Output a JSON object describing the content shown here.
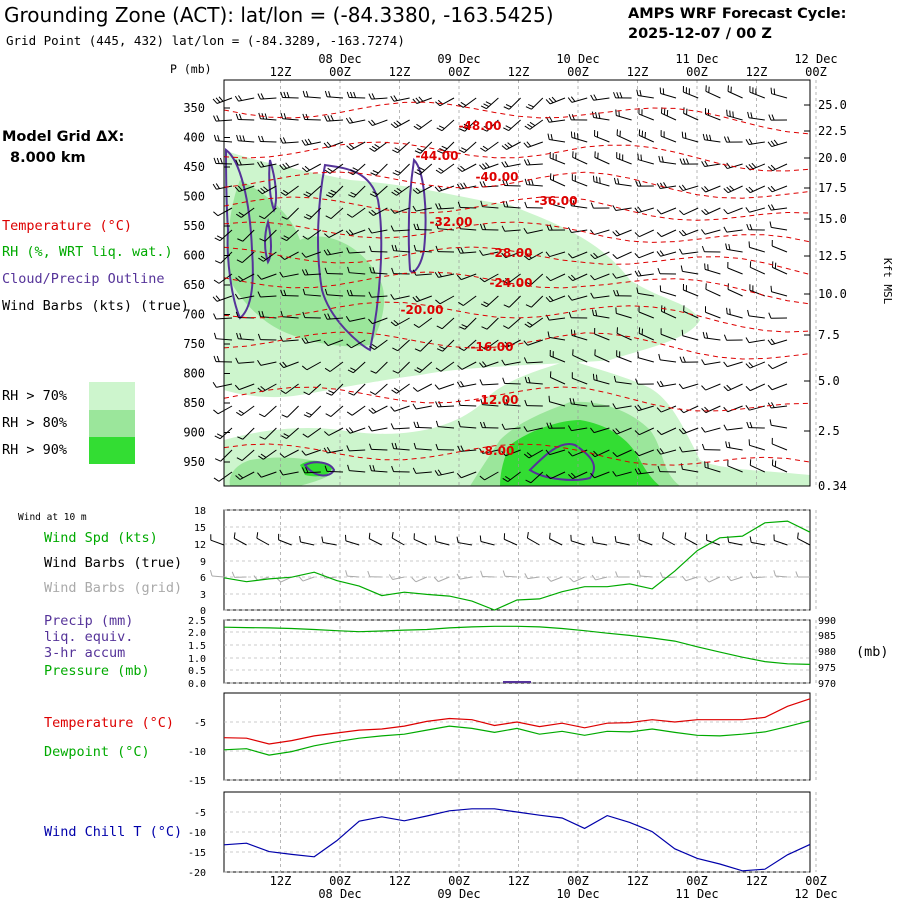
{
  "header": {
    "title": "Grounding Zone (ACT):  lat/lon = (-84.3380, -163.5425)",
    "grid_point": "Grid Point (445, 432) lat/lon = (-84.3289, -163.7274)",
    "cycle_line1": "AMPS WRF Forecast Cycle:",
    "cycle_line2": "2025-12-07 / 00  Z"
  },
  "model_grid": {
    "line1": "Model Grid ΔX:",
    "line2": "8.000 km"
  },
  "time_axis": {
    "hour_labels": [
      "12Z",
      "00Z",
      "12Z",
      "00Z",
      "12Z",
      "00Z",
      "12Z",
      "00Z",
      "12Z",
      "00Z"
    ],
    "date_labels": [
      "08 Dec",
      "09 Dec",
      "10 Dec",
      "11 Dec",
      "12 Dec"
    ]
  },
  "colors": {
    "temperature": "#dd0000",
    "rh": "#00aa00",
    "cloud": "#553399",
    "wind": "#000000",
    "grid_barbs": "#aaaaaa",
    "windchill": "#0000aa",
    "rh70": "#cdf5cd",
    "rh80": "#9be69b",
    "rh90": "#33dd33"
  },
  "legend": {
    "temperature": "Temperature (°C)",
    "rh": "RH (%, WRT liq. wat.)",
    "cloud": "Cloud/Precip Outline",
    "wind": "Wind Barbs (kts) (true)",
    "rh70": "RH > 70%",
    "rh80": "RH > 80%",
    "rh90": "RH > 90%"
  },
  "chart_data": [
    {
      "type": "heatmap",
      "name": "cross-section",
      "ylabel": "P (mb)",
      "y_ticks": [
        "350",
        "400",
        "450",
        "500",
        "550",
        "600",
        "650",
        "700",
        "750",
        "800",
        "850",
        "900",
        "950"
      ],
      "right_ticks": [
        "25.0",
        "22.5",
        "20.0",
        "17.5",
        "15.0",
        "12.5",
        "10.0",
        "7.5",
        "5.0",
        "2.5",
        "0.34"
      ],
      "right_axis_label": "Kft MSL",
      "isotherm_labels": [
        "-48.00",
        "-44.00",
        "-40.00",
        "-36.00",
        "-32.00",
        "-28.00",
        "-24.00",
        "-20.00",
        "-16.00",
        "-12.00",
        "-8.00"
      ]
    },
    {
      "type": "line",
      "name": "wind-10m",
      "title": "Wind at 10 m",
      "legend": [
        "Wind Spd (kts)",
        "Wind Barbs (true)",
        "Wind Barbs (grid)"
      ],
      "y_ticks": [
        "18",
        "15",
        "12",
        "9",
        "6",
        "3",
        "0"
      ],
      "ylim": [
        0,
        18
      ],
      "series": [
        {
          "name": "Wind Spd (kts)",
          "values": [
            5.8,
            5.1,
            5.6,
            5.9,
            6.8,
            5.3,
            4.3,
            2.6,
            3.2,
            2.8,
            2.5,
            1.6,
            0,
            1.8,
            2.0,
            3.3,
            4.2,
            4.2,
            4.7,
            3.8,
            7.0,
            10.7,
            13.0,
            13.3,
            15.7,
            16.0,
            14.0
          ]
        }
      ]
    },
    {
      "type": "line",
      "name": "precip-pressure",
      "legend": [
        "Precip (mm)",
        "liq. equiv.",
        "3-hr accum",
        "Pressure (mb)"
      ],
      "y_ticks": [
        "2.5",
        "2.0",
        "1.5",
        "1.0",
        "0.5",
        "0.0"
      ],
      "right_ticks": [
        "990",
        "985",
        "980",
        "975",
        "970"
      ],
      "right_unit": "(mb)",
      "ylim": [
        0,
        2.5
      ],
      "ylim_right": [
        970,
        990
      ],
      "precip_bars": [
        {
          "index": 13,
          "value": 0.05
        }
      ],
      "series": [
        {
          "name": "Pressure (mb)",
          "values": [
            987.7,
            987.6,
            987.5,
            987.3,
            987.0,
            986.6,
            986.3,
            986.5,
            986.8,
            987.0,
            987.5,
            987.8,
            988.0,
            988.0,
            987.8,
            987.3,
            986.6,
            985.8,
            985.1,
            984.3,
            983.3,
            981.5,
            979.8,
            978.2,
            976.8,
            976.1,
            975.9
          ]
        }
      ]
    },
    {
      "type": "line",
      "name": "temperature-dewpoint",
      "legend": [
        "Temperature (°C)",
        "Dewpoint (°C)"
      ],
      "y_ticks": [
        "-5",
        "-10",
        "-15"
      ],
      "ylim": [
        -15,
        0
      ],
      "series": [
        {
          "name": "Temperature (°C)",
          "values": [
            -7.7,
            -7.8,
            -8.8,
            -8.2,
            -7.4,
            -6.9,
            -6.4,
            -6.2,
            -5.7,
            -4.9,
            -4.4,
            -4.6,
            -5.6,
            -5.0,
            -5.8,
            -5.2,
            -6.0,
            -5.2,
            -5.1,
            -4.6,
            -5.0,
            -4.6,
            -4.6,
            -4.6,
            -4.2,
            -2.3,
            -1.0
          ]
        },
        {
          "name": "Dewpoint (°C)",
          "values": [
            -9.8,
            -9.6,
            -10.7,
            -10.1,
            -9.1,
            -8.4,
            -7.8,
            -7.4,
            -7.1,
            -6.4,
            -5.7,
            -6.1,
            -6.8,
            -6.1,
            -7.1,
            -6.6,
            -7.3,
            -6.6,
            -6.7,
            -6.2,
            -6.8,
            -7.3,
            -7.4,
            -7.1,
            -6.7,
            -5.8,
            -4.8
          ]
        }
      ]
    },
    {
      "type": "line",
      "name": "wind-chill",
      "legend": [
        "Wind Chill T (°C)"
      ],
      "y_ticks": [
        "-5",
        "-10",
        "-15",
        "-20"
      ],
      "ylim": [
        -20,
        0
      ],
      "series": [
        {
          "name": "Wind Chill T (°C)",
          "values": [
            -13.2,
            -12.8,
            -14.9,
            -15.6,
            -16.2,
            -12.2,
            -7.3,
            -6.2,
            -7.2,
            -6.0,
            -4.7,
            -4.2,
            -4.2,
            -5.0,
            -5.8,
            -6.5,
            -9.1,
            -5.9,
            -7.6,
            -9.9,
            -14.2,
            -16.6,
            -18.0,
            -19.7,
            -19.3,
            -15.7,
            -13.1
          ]
        }
      ]
    }
  ]
}
